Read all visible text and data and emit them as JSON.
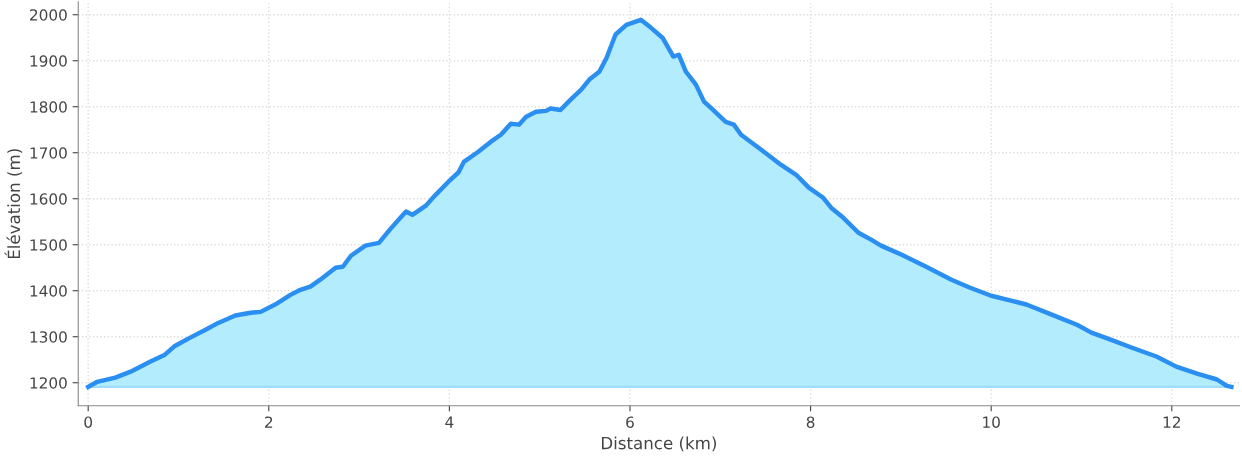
{
  "chart_data": {
    "type": "area",
    "xlabel": "Distance (km)",
    "ylabel": "Élévation (m)",
    "xlim": [
      -0.11,
      12.75
    ],
    "ylim": [
      1150,
      2028
    ],
    "xticks": [
      0,
      2,
      4,
      6,
      8,
      10,
      12
    ],
    "yticks": [
      1200,
      1300,
      1400,
      1500,
      1600,
      1700,
      1800,
      1900,
      2000
    ],
    "grid": true,
    "series": [
      {
        "color": "#2a8ff0",
        "x": [
          0,
          0.1,
          0.3,
          0.47,
          0.69,
          0.85,
          0.96,
          1.13,
          1.3,
          1.44,
          1.63,
          1.8,
          1.91,
          2.07,
          2.24,
          2.35,
          2.46,
          2.57,
          2.74,
          2.82,
          2.91,
          3.07,
          3.22,
          3.35,
          3.46,
          3.52,
          3.59,
          3.74,
          3.85,
          3.99,
          4.1,
          4.16,
          4.32,
          4.46,
          4.57,
          4.68,
          4.77,
          4.85,
          4.96,
          5.07,
          5.12,
          5.23,
          5.34,
          5.46,
          5.55,
          5.66,
          5.74,
          5.84,
          5.96,
          6.12,
          6.23,
          6.36,
          6.48,
          6.54,
          6.62,
          6.73,
          6.82,
          6.92,
          7.06,
          7.15,
          7.23,
          7.45,
          7.67,
          7.84,
          7.98,
          8.14,
          8.23,
          8.36,
          8.53,
          8.67,
          8.78,
          9.01,
          9.28,
          9.56,
          9.76,
          10.0,
          10.23,
          10.39,
          10.67,
          10.95,
          11.11,
          11.33,
          11.56,
          11.83,
          12.05,
          12.28,
          12.5,
          12.61,
          12.66
        ],
        "values": [
          1191,
          1202,
          1211,
          1224,
          1246,
          1261,
          1280,
          1298,
          1315,
          1330,
          1346,
          1352,
          1354,
          1370,
          1391,
          1402,
          1409,
          1424,
          1450,
          1452,
          1476,
          1498,
          1504,
          1535,
          1559,
          1572,
          1565,
          1585,
          1609,
          1637,
          1657,
          1680,
          1702,
          1724,
          1739,
          1763,
          1761,
          1778,
          1789,
          1791,
          1796,
          1793,
          1815,
          1837,
          1859,
          1876,
          1906,
          1957,
          1978,
          1989,
          1972,
          1950,
          1909,
          1913,
          1876,
          1848,
          1811,
          1793,
          1767,
          1761,
          1739,
          1707,
          1674,
          1652,
          1624,
          1602,
          1580,
          1559,
          1526,
          1511,
          1498,
          1478,
          1452,
          1424,
          1407,
          1389,
          1378,
          1370,
          1348,
          1326,
          1309,
          1293,
          1276,
          1257,
          1235,
          1220,
          1207,
          1193,
          1191
        ]
      }
    ]
  }
}
